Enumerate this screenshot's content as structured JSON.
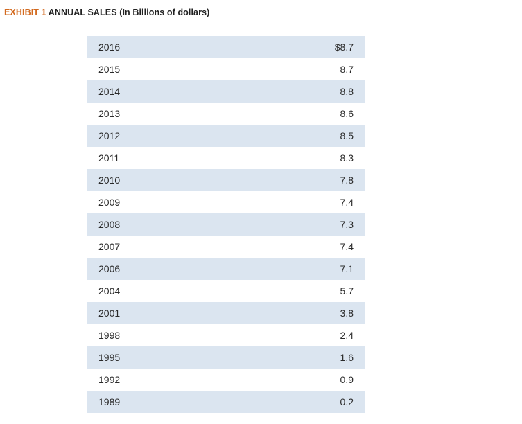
{
  "header": {
    "exhibit_label": "EXHIBIT 1",
    "title": "ANNUAL SALES (In Billions of dollars)"
  },
  "colors": {
    "exhibit_label": "#d2691e",
    "row_shade": "#dbe5f0"
  },
  "table": {
    "rows": [
      {
        "year": "2016",
        "value": "$8.7"
      },
      {
        "year": "2015",
        "value": "8.7"
      },
      {
        "year": "2014",
        "value": "8.8"
      },
      {
        "year": "2013",
        "value": "8.6"
      },
      {
        "year": "2012",
        "value": "8.5"
      },
      {
        "year": "2011",
        "value": "8.3"
      },
      {
        "year": "2010",
        "value": "7.8"
      },
      {
        "year": "2009",
        "value": "7.4"
      },
      {
        "year": "2008",
        "value": "7.3"
      },
      {
        "year": "2007",
        "value": "7.4"
      },
      {
        "year": "2006",
        "value": "7.1"
      },
      {
        "year": "2004",
        "value": "5.7"
      },
      {
        "year": "2001",
        "value": "3.8"
      },
      {
        "year": "1998",
        "value": "2.4"
      },
      {
        "year": "1995",
        "value": "1.6"
      },
      {
        "year": "1992",
        "value": "0.9"
      },
      {
        "year": "1989",
        "value": "0.2"
      }
    ]
  }
}
